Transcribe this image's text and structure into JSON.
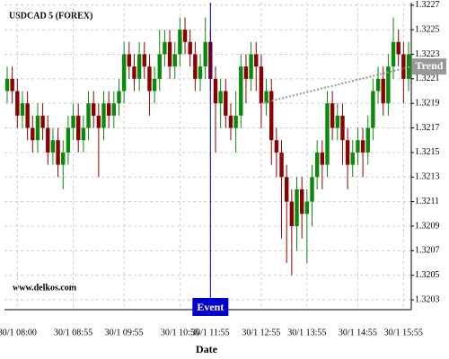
{
  "chart_data": {
    "type": "candlestick",
    "title": "USDCAD 5 (FOREX)",
    "watermark": "www.delkos.com",
    "x_label": "Date",
    "categories": [
      null,
      null,
      "30/1 08:00",
      null,
      null,
      null,
      null,
      null,
      null,
      null,
      null,
      null,
      null,
      "30/1 08:55",
      null,
      null,
      null,
      null,
      null,
      null,
      null,
      null,
      null,
      "30/1 09:55",
      null,
      null,
      null,
      null,
      null,
      null,
      null,
      null,
      null,
      null,
      "30/1 10:55",
      null,
      null,
      null,
      null,
      null,
      "30/1 11:55",
      null,
      null,
      null,
      null,
      null,
      null,
      null,
      null,
      null,
      "30/1 12:55",
      null,
      null,
      null,
      null,
      null,
      null,
      null,
      null,
      "30/1 13:55",
      null,
      null,
      null,
      null,
      null,
      null,
      null,
      null,
      null,
      "30/1 14:55",
      null,
      null,
      null,
      null,
      null,
      null,
      null,
      null,
      "30/1 15:55",
      null
    ],
    "open": [
      1.322,
      1.3221,
      1.322,
      1.3218,
      1.3219,
      1.3217,
      1.3216,
      1.3218,
      1.3217,
      1.3215,
      1.3216,
      1.3214,
      1.3215,
      1.3217,
      1.3218,
      1.3216,
      1.3217,
      1.3219,
      1.3218,
      1.3217,
      1.3219,
      1.3218,
      1.3219,
      1.322,
      1.3223,
      1.3222,
      1.3221,
      1.3223,
      1.3222,
      1.322,
      1.3221,
      1.3223,
      1.3224,
      1.3222,
      1.3223,
      1.3225,
      1.3224,
      1.3223,
      1.3221,
      1.3222,
      1.3224,
      1.3221,
      1.3219,
      1.322,
      1.3218,
      1.3217,
      1.3218,
      1.3222,
      1.3221,
      1.3223,
      1.3222,
      1.3219,
      1.322,
      1.3216,
      1.3215,
      1.3213,
      1.3211,
      1.3209,
      1.3212,
      1.321,
      1.3211,
      1.3213,
      1.3215,
      1.3214,
      1.3219,
      1.3217,
      1.3218,
      1.3216,
      1.3214,
      1.3215,
      1.3216,
      1.3215,
      1.3217,
      1.322,
      1.3221,
      1.3219,
      1.3222,
      1.3224,
      1.3223,
      1.3221
    ],
    "high": [
      1.3222,
      1.3222,
      1.3221,
      1.322,
      1.322,
      1.3218,
      1.3219,
      1.3219,
      1.3218,
      1.3217,
      1.3217,
      1.3216,
      1.3218,
      1.3219,
      1.3219,
      1.3218,
      1.322,
      1.322,
      1.3219,
      1.322,
      1.322,
      1.322,
      1.3221,
      1.3224,
      1.3224,
      1.3223,
      1.3224,
      1.3224,
      1.3223,
      1.3222,
      1.3225,
      1.3225,
      1.3225,
      1.3224,
      1.3226,
      1.3226,
      1.3225,
      1.3224,
      1.3223,
      1.3226,
      1.3225,
      1.3222,
      1.3221,
      1.3221,
      1.3219,
      1.322,
      1.3223,
      1.3223,
      1.3224,
      1.3224,
      1.3223,
      1.3221,
      1.3221,
      1.3217,
      1.3216,
      1.3214,
      1.3212,
      1.3213,
      1.3213,
      1.3212,
      1.3214,
      1.3216,
      1.3216,
      1.322,
      1.322,
      1.3219,
      1.3219,
      1.3217,
      1.3216,
      1.3217,
      1.3217,
      1.3218,
      1.3221,
      1.3222,
      1.3222,
      1.3223,
      1.3226,
      1.3225,
      1.3224,
      1.3224
    ],
    "low": [
      1.3219,
      1.3219,
      1.3217,
      1.3217,
      1.3216,
      1.3215,
      1.3215,
      1.3216,
      1.3214,
      1.3214,
      1.3213,
      1.3212,
      1.3214,
      1.3216,
      1.3215,
      1.3215,
      1.3216,
      1.3217,
      1.3213,
      1.3216,
      1.3217,
      1.3217,
      1.3218,
      1.3219,
      1.3221,
      1.322,
      1.322,
      1.3221,
      1.3218,
      1.3219,
      1.322,
      1.3222,
      1.3221,
      1.3221,
      1.3222,
      1.3223,
      1.3222,
      1.322,
      1.322,
      1.3221,
      1.322,
      1.3215,
      1.3217,
      1.3217,
      1.3216,
      1.3215,
      1.3217,
      1.3219,
      1.322,
      1.322,
      1.3217,
      1.3218,
      1.3214,
      1.3213,
      1.3208,
      1.3206,
      1.3205,
      1.3207,
      1.3208,
      1.3206,
      1.3209,
      1.3212,
      1.3212,
      1.3213,
      1.3216,
      1.3216,
      1.3214,
      1.3212,
      1.3213,
      1.3214,
      1.3213,
      1.3214,
      1.3216,
      1.3219,
      1.3218,
      1.3218,
      1.3221,
      1.3222,
      1.3219,
      1.322
    ],
    "close": [
      1.3221,
      1.322,
      1.3218,
      1.3219,
      1.3217,
      1.3216,
      1.3218,
      1.3217,
      1.3215,
      1.3216,
      1.3214,
      1.3215,
      1.3217,
      1.3218,
      1.3216,
      1.3217,
      1.3219,
      1.3218,
      1.3217,
      1.3219,
      1.3218,
      1.3219,
      1.322,
      1.3223,
      1.3222,
      1.3221,
      1.3223,
      1.3222,
      1.322,
      1.3221,
      1.3223,
      1.3224,
      1.3222,
      1.3223,
      1.3225,
      1.3224,
      1.3223,
      1.3221,
      1.3222,
      1.3224,
      1.3221,
      1.3219,
      1.322,
      1.3218,
      1.3217,
      1.3218,
      1.3222,
      1.3221,
      1.3223,
      1.3222,
      1.3219,
      1.322,
      1.3216,
      1.3215,
      1.3213,
      1.3211,
      1.3209,
      1.3212,
      1.321,
      1.3211,
      1.3213,
      1.3215,
      1.3214,
      1.3219,
      1.3217,
      1.3218,
      1.3216,
      1.3214,
      1.3215,
      1.3216,
      1.3215,
      1.3217,
      1.322,
      1.3221,
      1.3219,
      1.3222,
      1.3224,
      1.3223,
      1.3221,
      1.3223
    ],
    "up_color": "#0a8a0a",
    "down_color": "#8b0000",
    "ylim": [
      1.32022,
      1.32272
    ],
    "yticks": [
      1.3203,
      1.3205,
      1.3207,
      1.3209,
      1.3211,
      1.3213,
      1.3215,
      1.3217,
      1.3219,
      1.3221,
      1.3223,
      1.3225,
      1.3227
    ],
    "grid": true,
    "event": {
      "label": "Event",
      "at": "30/1 11:55",
      "color": "#0000cc"
    },
    "trend": {
      "label": "Trend",
      "from": "30/1 12:55",
      "values": [
        1.3219,
        1.3222
      ],
      "color": "#999999"
    }
  }
}
